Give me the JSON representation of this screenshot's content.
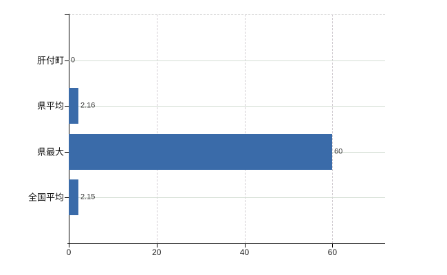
{
  "chart_data": {
    "type": "bar",
    "orientation": "horizontal",
    "title": "",
    "xlabel": "",
    "ylabel": "",
    "categories": [
      "肝付町",
      "県平均",
      "県最大",
      "全国平均"
    ],
    "values": [
      0,
      2.16,
      60,
      2.15
    ],
    "value_labels": [
      "0",
      "2.16",
      "60",
      "2.15"
    ],
    "x_ticks": [
      0,
      20,
      40,
      60
    ],
    "x_tick_labels": [
      "0",
      "20",
      "40",
      "60"
    ],
    "xlim": [
      0,
      72
    ],
    "legend": "none",
    "grid": {
      "vertical_gridlines": "dashed",
      "category_row_lines": "solid",
      "plot_top_border": "dashed"
    },
    "colors": {
      "bar": "#3a6ba9",
      "vertical_grid": "#d2cdd2",
      "row_line": "#d3ddd3",
      "top_border": "#c9c9c9",
      "axis": "#000000",
      "value_label": "#3a3a3a",
      "tick_label": "#222222",
      "category_label": "#111111",
      "background": "#ffffff"
    }
  }
}
